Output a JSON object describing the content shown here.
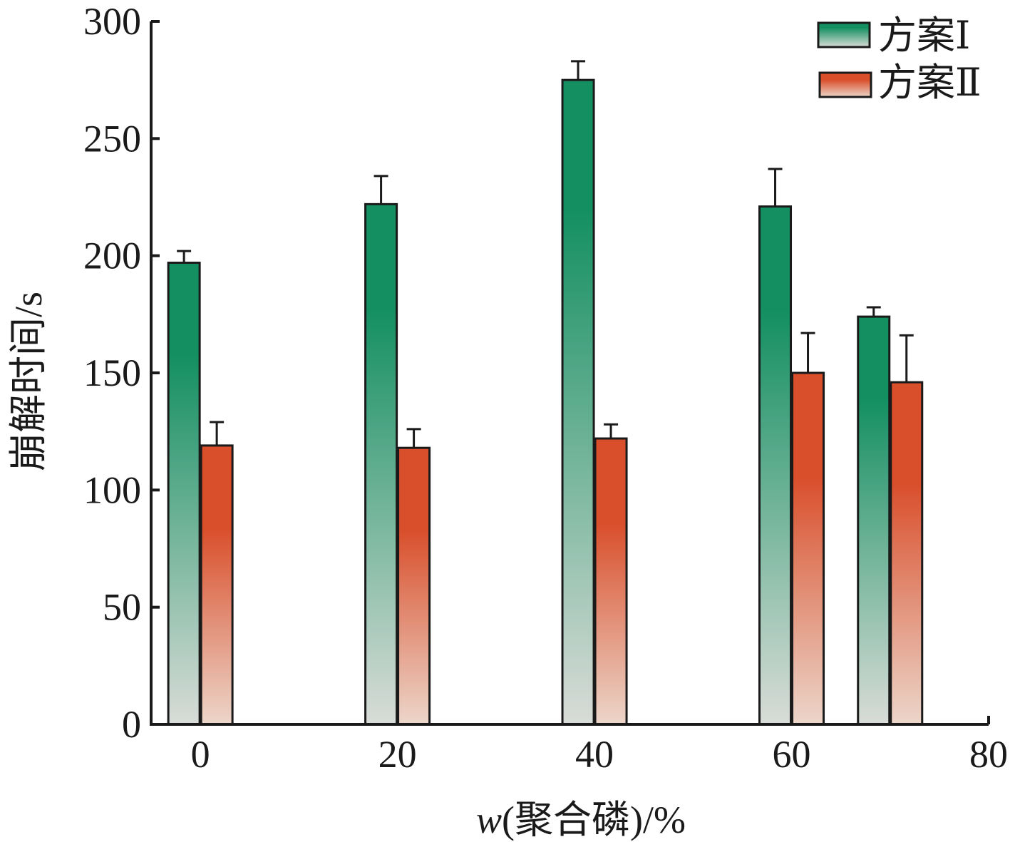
{
  "chart_data": {
    "type": "bar",
    "x_ticks": [
      "0",
      "20",
      "40",
      "60",
      "80"
    ],
    "x_tick_values": [
      0,
      20,
      40,
      60,
      80
    ],
    "xlim": [
      -5,
      80
    ],
    "y_ticks": [
      "0",
      "50",
      "100",
      "150",
      "200",
      "250",
      "300"
    ],
    "y_tick_values": [
      0,
      50,
      100,
      150,
      200,
      250,
      300
    ],
    "ylim": [
      0,
      300
    ],
    "xlabel_prefix": "w",
    "xlabel_rest": "(聚合磷)/%",
    "ylabel": "崩解时间/s",
    "legend_position": "top-right",
    "series": [
      {
        "name": "方案Ⅰ",
        "color_top": "#138f62",
        "color_bottom": "#d9dcd8",
        "points": [
          {
            "x": 0,
            "value": 197,
            "err": 5
          },
          {
            "x": 20,
            "value": 222,
            "err": 12
          },
          {
            "x": 40,
            "value": 275,
            "err": 8
          },
          {
            "x": 60,
            "value": 221,
            "err": 16
          },
          {
            "x": 70,
            "value": 174,
            "err": 4
          }
        ]
      },
      {
        "name": "方案Ⅱ",
        "color_top": "#d94f2c",
        "color_bottom": "#ecd6ca",
        "points": [
          {
            "x": 0,
            "value": 119,
            "err": 10
          },
          {
            "x": 20,
            "value": 118,
            "err": 8
          },
          {
            "x": 40,
            "value": 122,
            "err": 6
          },
          {
            "x": 60,
            "value": 150,
            "err": 17
          },
          {
            "x": 70,
            "value": 146,
            "err": 20
          }
        ]
      }
    ]
  }
}
